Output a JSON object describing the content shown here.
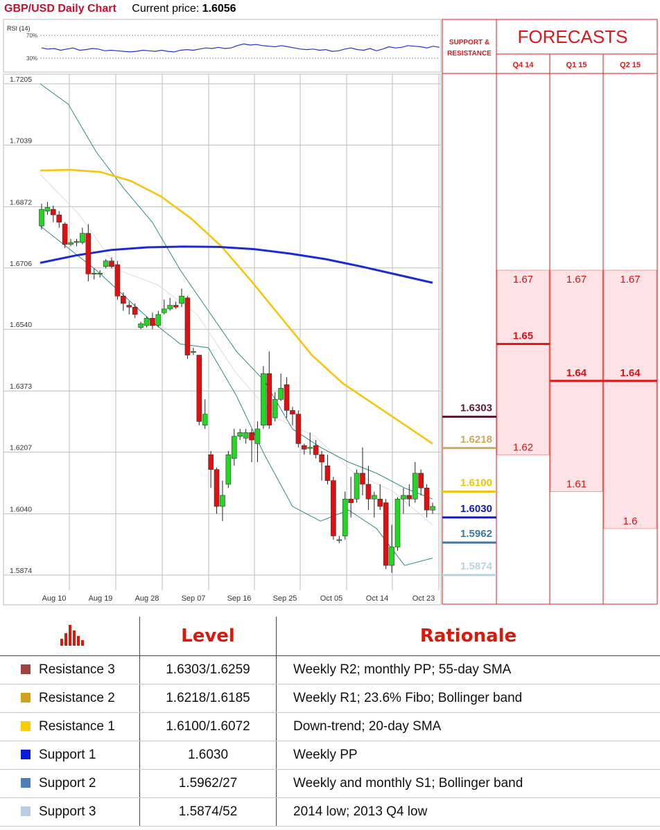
{
  "header": {
    "title": "GBP/USD Daily Chart",
    "price_label": "Current price:",
    "price_value": "1.6056"
  },
  "rsi": {
    "label": "RSI (14)",
    "levels": [
      "70%",
      "30%"
    ],
    "values": [
      48,
      46,
      47,
      44,
      46,
      48,
      44,
      45,
      47,
      46,
      43,
      44,
      43,
      42,
      41,
      42,
      44,
      43,
      42,
      44,
      42,
      41,
      44,
      45,
      44,
      46,
      48,
      47,
      49,
      47,
      48,
      52,
      55,
      53,
      54,
      52,
      51,
      50,
      52,
      50,
      48,
      46,
      45,
      46,
      44,
      45,
      42,
      43,
      46,
      48,
      45,
      44,
      47,
      43,
      46,
      50,
      48,
      49,
      52,
      51,
      50,
      48,
      51,
      49
    ]
  },
  "chart_data": {
    "type": "candlestick",
    "title": "GBP/USD Daily Chart",
    "y_ticks": [
      "1.7205",
      "1.7039",
      "1.6872",
      "1.6706",
      "1.6540",
      "1.6373",
      "1.6207",
      "1.6040",
      "1.5874"
    ],
    "x_ticks": [
      "Aug 10",
      "Aug 19",
      "Aug 28",
      "Sep 07",
      "Sep 16",
      "Sep 25",
      "Oct 05",
      "Oct 14",
      "Oct 23"
    ],
    "ylim": [
      1.5874,
      1.7205
    ],
    "candles": [
      [
        1.682,
        1.6865,
        1.688,
        1.681
      ],
      [
        1.686,
        1.687,
        1.6885,
        1.685
      ],
      [
        1.6865,
        1.685,
        1.6875,
        1.683
      ],
      [
        1.685,
        1.683,
        1.686,
        1.6815
      ],
      [
        1.6825,
        1.677,
        1.683,
        1.676
      ],
      [
        1.677,
        1.6775,
        1.6785,
        1.6765
      ],
      [
        1.6775,
        1.6778,
        1.6785,
        1.6765
      ],
      [
        1.6775,
        1.68,
        1.6815,
        1.677
      ],
      [
        1.68,
        1.669,
        1.6825,
        1.667
      ],
      [
        1.669,
        1.6692,
        1.6705,
        1.6675
      ],
      [
        1.669,
        1.6692,
        1.67,
        1.668
      ],
      [
        1.671,
        1.6725,
        1.673,
        1.6705
      ],
      [
        1.6725,
        1.671,
        1.6735,
        1.6705
      ],
      [
        1.6715,
        1.663,
        1.6725,
        1.662
      ],
      [
        1.663,
        1.661,
        1.664,
        1.659
      ],
      [
        1.6605,
        1.66,
        1.6615,
        1.658
      ],
      [
        1.66,
        1.658,
        1.661,
        1.657
      ],
      [
        1.6545,
        1.6555,
        1.656,
        1.654
      ],
      [
        1.655,
        1.657,
        1.6575,
        1.6545
      ],
      [
        1.657,
        1.655,
        1.6585,
        1.654
      ],
      [
        1.655,
        1.658,
        1.659,
        1.6545
      ],
      [
        1.6585,
        1.6595,
        1.662,
        1.658
      ],
      [
        1.6595,
        1.6605,
        1.6625,
        1.659
      ],
      [
        1.6605,
        1.66,
        1.6615,
        1.6595
      ],
      [
        1.661,
        1.663,
        1.665,
        1.66
      ],
      [
        1.6625,
        1.647,
        1.663,
        1.646
      ],
      [
        1.648,
        1.648,
        1.649,
        1.647
      ],
      [
        1.647,
        1.629,
        1.647,
        1.628
      ],
      [
        1.628,
        1.631,
        1.635,
        1.627
      ],
      [
        1.62,
        1.616,
        1.621,
        1.611
      ],
      [
        1.616,
        1.606,
        1.6165,
        1.604
      ],
      [
        1.606,
        1.609,
        1.613,
        1.602
      ],
      [
        1.612,
        1.62,
        1.621,
        1.611
      ],
      [
        1.619,
        1.625,
        1.627,
        1.617
      ],
      [
        1.625,
        1.626,
        1.627,
        1.624
      ],
      [
        1.6245,
        1.626,
        1.627,
        1.623
      ],
      [
        1.626,
        1.624,
        1.627,
        1.618
      ],
      [
        1.623,
        1.627,
        1.629,
        1.618
      ],
      [
        1.628,
        1.642,
        1.644,
        1.627
      ],
      [
        1.642,
        1.628,
        1.648,
        1.627
      ],
      [
        1.63,
        1.635,
        1.637,
        1.629
      ],
      [
        1.635,
        1.638,
        1.642,
        1.6345
      ],
      [
        1.639,
        1.632,
        1.641,
        1.63
      ],
      [
        1.632,
        1.631,
        1.633,
        1.628
      ],
      [
        1.631,
        1.623,
        1.632,
        1.622
      ],
      [
        1.6225,
        1.6215,
        1.623,
        1.62
      ],
      [
        1.622,
        1.622,
        1.626,
        1.62
      ],
      [
        1.6225,
        1.62,
        1.624,
        1.619
      ],
      [
        1.62,
        1.618,
        1.621,
        1.613
      ],
      [
        1.617,
        1.613,
        1.62,
        1.612
      ],
      [
        1.613,
        1.598,
        1.614,
        1.597
      ],
      [
        1.597,
        1.597,
        1.598,
        1.596
      ],
      [
        1.598,
        1.608,
        1.61,
        1.597
      ],
      [
        1.608,
        1.607,
        1.614,
        1.603
      ],
      [
        1.608,
        1.615,
        1.616,
        1.607
      ],
      [
        1.615,
        1.612,
        1.622,
        1.609
      ],
      [
        1.612,
        1.608,
        1.617,
        1.605
      ],
      [
        1.608,
        1.609,
        1.61,
        1.603
      ],
      [
        1.608,
        1.606,
        1.612,
        1.605
      ],
      [
        1.607,
        1.59,
        1.608,
        1.589
      ],
      [
        1.59,
        1.595,
        1.601,
        1.588
      ],
      [
        1.595,
        1.608,
        1.6085,
        1.594
      ],
      [
        1.608,
        1.609,
        1.611,
        1.604
      ],
      [
        1.609,
        1.608,
        1.612,
        1.606
      ],
      [
        1.608,
        1.615,
        1.618,
        1.607
      ],
      [
        1.615,
        1.611,
        1.616,
        1.609
      ],
      [
        1.611,
        1.605,
        1.612,
        1.603
      ],
      [
        1.605,
        1.606,
        1.607,
        1.604
      ]
    ],
    "sma_200": [
      1.672,
      1.674,
      1.6755,
      1.6762,
      1.6764,
      1.6763,
      1.6757,
      1.6745,
      1.673,
      1.671,
      1.6688,
      1.6666
    ],
    "sma_55": [
      1.697,
      1.6972,
      1.6966,
      1.6942,
      1.69,
      1.684,
      1.6765,
      1.667,
      1.657,
      1.647,
      1.6395,
      1.634,
      1.6285,
      1.623
    ],
    "boll_upper": [
      1.7205,
      1.715,
      1.702,
      1.692,
      1.683,
      1.67,
      1.659,
      1.648,
      1.64,
      1.627,
      1.622,
      1.618,
      1.615,
      1.611,
      1.608
    ],
    "boll_lower": [
      1.682,
      1.676,
      1.67,
      1.663,
      1.656,
      1.65,
      1.649,
      1.636,
      1.62,
      1.606,
      1.602,
      1.605,
      1.6,
      1.59,
      1.592
    ],
    "boll_mid": [
      1.696,
      1.685,
      1.67,
      1.666,
      1.658,
      1.642,
      1.63,
      1.625,
      1.615,
      1.61,
      1.601
    ]
  },
  "levels": {
    "header": "SUPPORT & RESISTANCE",
    "items": [
      {
        "value": "1.6303",
        "price": 1.6303,
        "color": "#5c1a34"
      },
      {
        "value": "1.6218",
        "price": 1.6218,
        "color": "#cfa85a"
      },
      {
        "value": "1.6100",
        "price": 1.61,
        "color": "#f3c200"
      },
      {
        "value": "1.6030",
        "price": 1.603,
        "color": "#1016cc"
      },
      {
        "value": "1.5962",
        "price": 1.5962,
        "color": "#3d77a6"
      },
      {
        "value": "1.5874",
        "price": 1.5874,
        "color": "#b9d4de"
      }
    ]
  },
  "forecasts": {
    "title": "FORECASTS",
    "columns": [
      {
        "label": "Q4 14",
        "high": "1.67",
        "mid": "1.65",
        "low": "1.62",
        "high_v": 1.67,
        "mid_v": 1.65,
        "low_v": 1.62
      },
      {
        "label": "Q1 15",
        "high": "1.67",
        "mid": "1.64",
        "low": "1.61",
        "high_v": 1.67,
        "mid_v": 1.64,
        "low_v": 1.61
      },
      {
        "label": "Q2 15",
        "high": "1.67",
        "mid": "1.64",
        "low": "1.6",
        "high_v": 1.67,
        "mid_v": 1.64,
        "low_v": 1.6
      }
    ]
  },
  "table": {
    "headers": {
      "level": "Level",
      "rationale": "Rationale"
    },
    "rows": [
      {
        "name": "Resistance 3",
        "level": "1.6303/1.6259",
        "rationale": "Weekly R2; monthly PP; 55-day SMA",
        "color": "#a0423f"
      },
      {
        "name": "Resistance 2",
        "level": "1.6218/1.6185",
        "rationale": "Weekly R1; 23.6% Fibo; Bollinger band",
        "color": "#d3a01f"
      },
      {
        "name": "Resistance 1",
        "level": "1.6100/1.6072",
        "rationale": "Down-trend; 20-day SMA",
        "color": "#ffcc00"
      },
      {
        "name": "Support 1",
        "level": "1.6030",
        "rationale": "Weekly PP",
        "color": "#0a1adc"
      },
      {
        "name": "Support 2",
        "level": "1.5962/27",
        "rationale": "Weekly and monthly S1; Bollinger band",
        "color": "#4a7ebb"
      },
      {
        "name": "Support 3",
        "level": "1.5874/52",
        "rationale": "2014 low; 2013 Q4 low",
        "color": "#b8cce4"
      }
    ]
  }
}
